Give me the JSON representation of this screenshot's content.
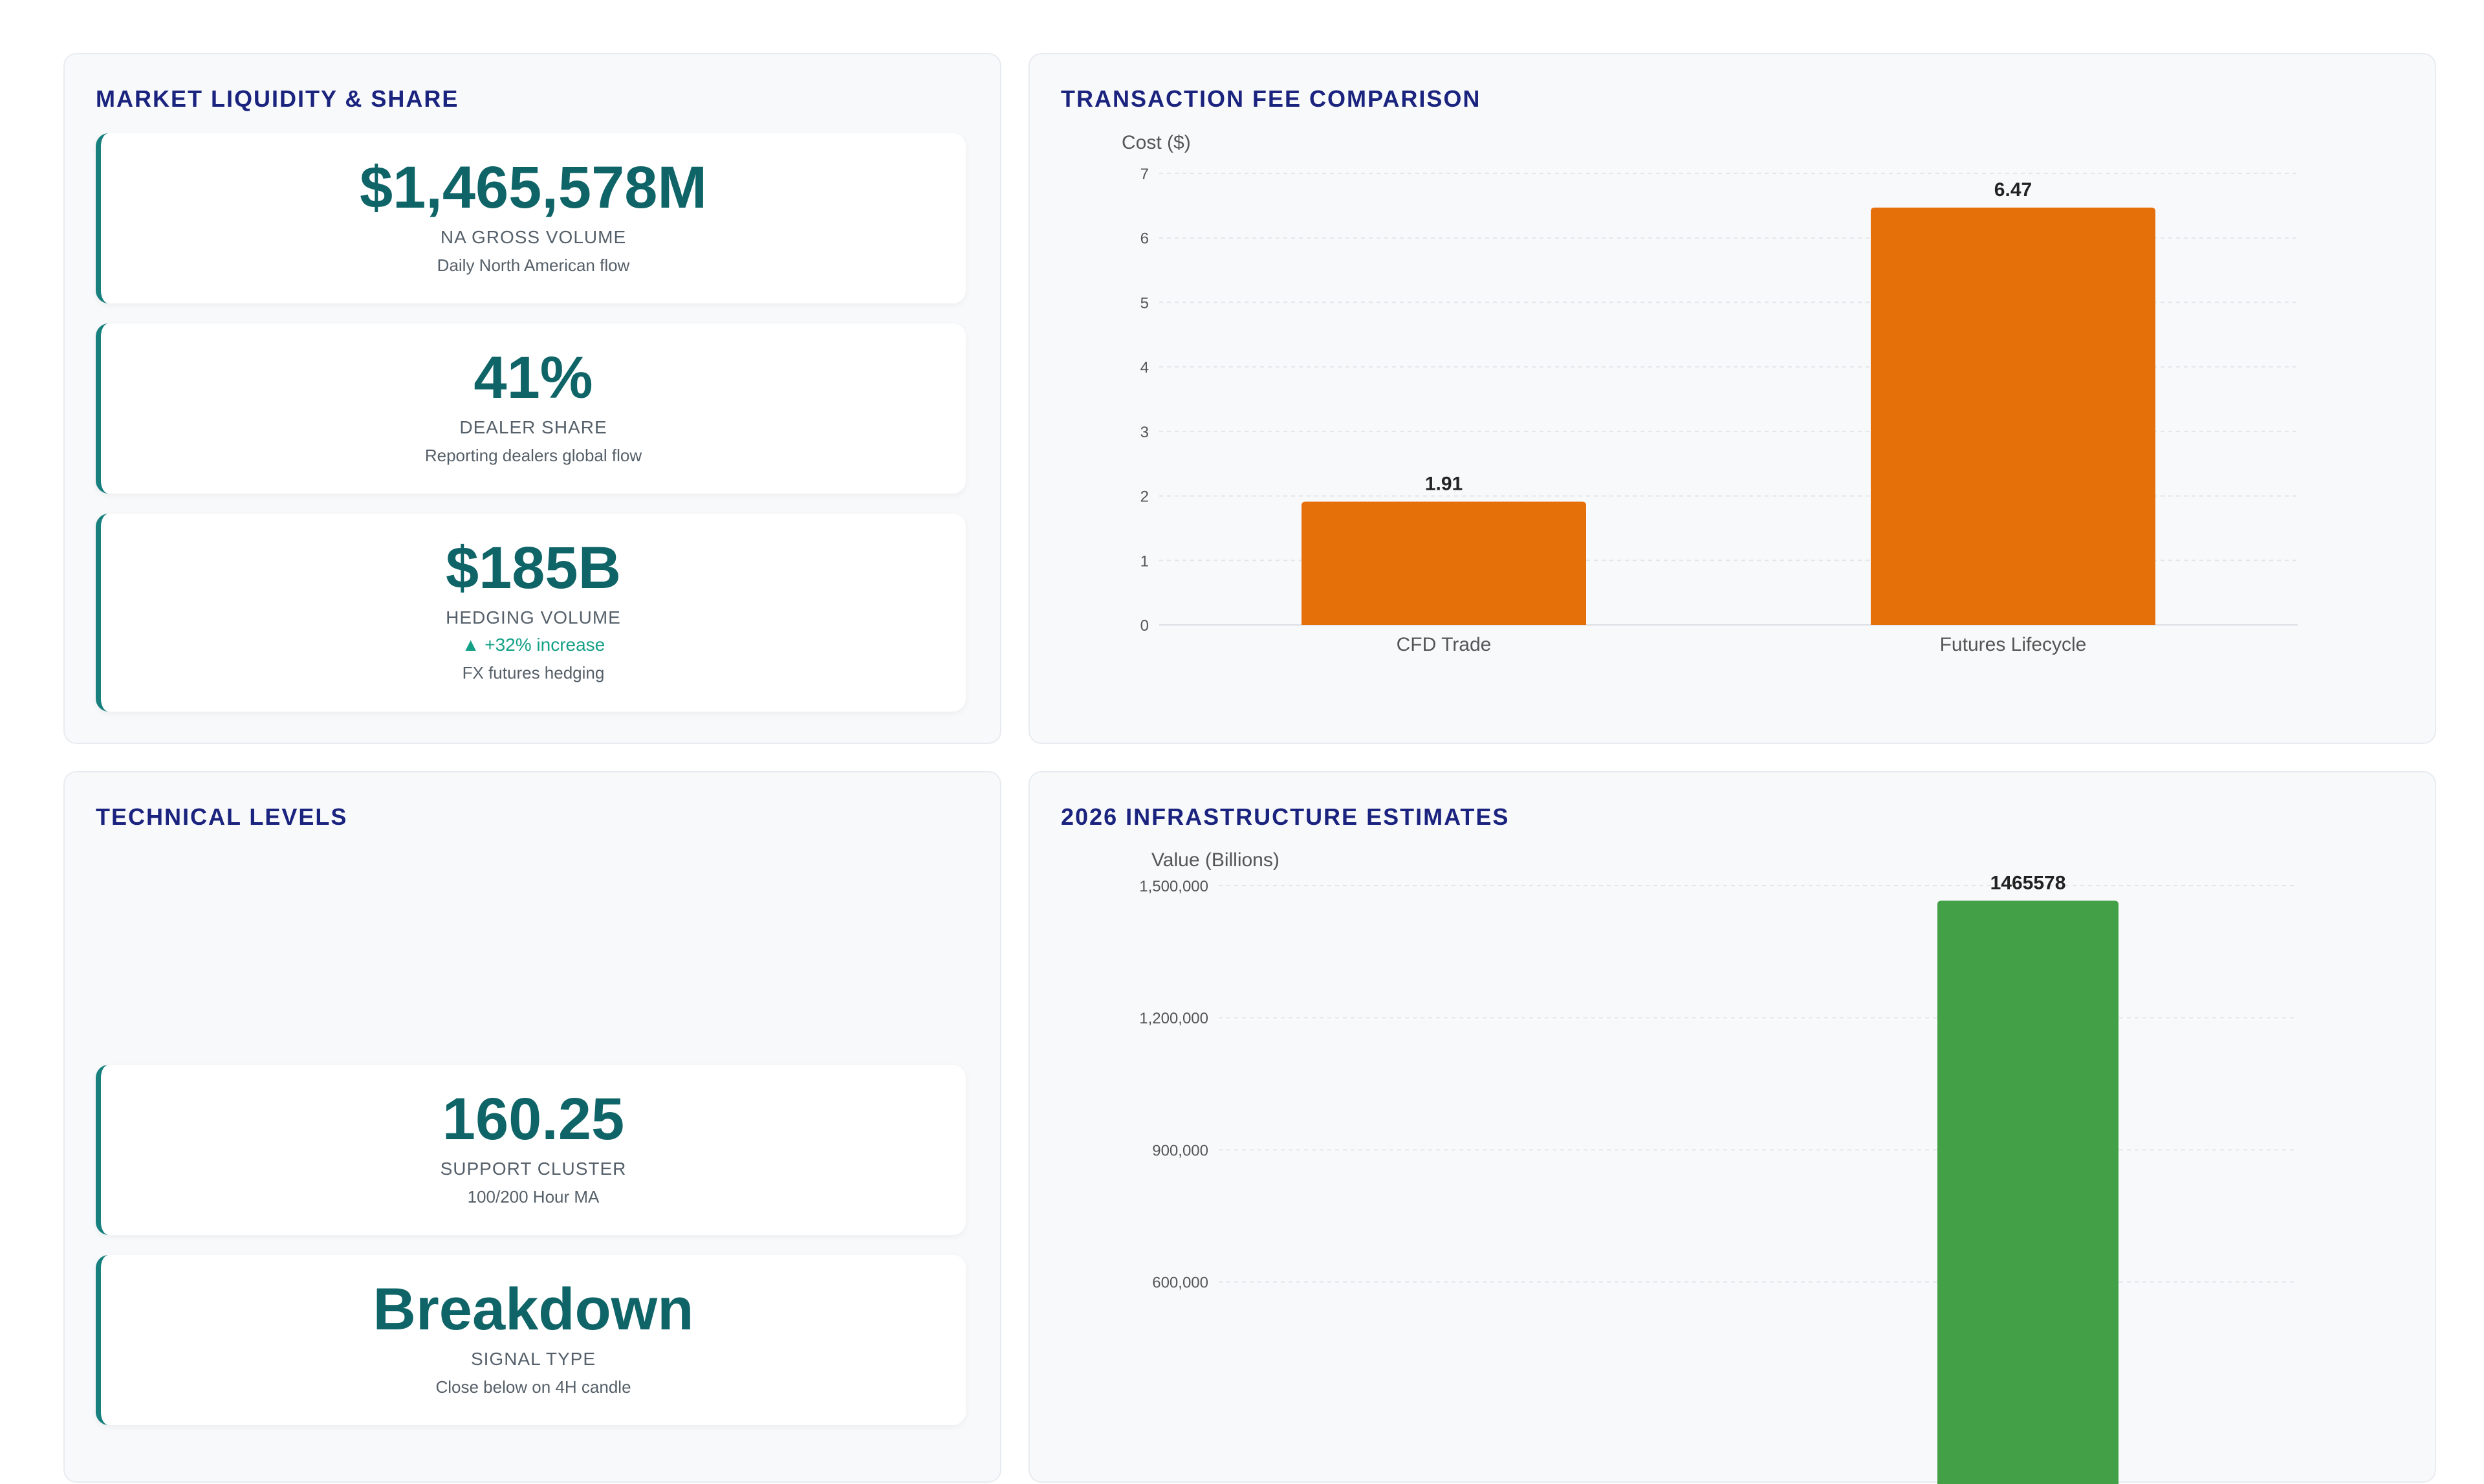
{
  "market": {
    "title": "MARKET LIQUIDITY & SHARE",
    "cards": [
      {
        "value": "$1,465,578M",
        "label": "NA GROSS VOLUME",
        "desc": "Daily North American flow"
      },
      {
        "value": "41%",
        "label": "DEALER SHARE",
        "desc": "Reporting dealers global flow"
      },
      {
        "value": "$185B",
        "label": "HEDGING VOLUME",
        "change": "▲ +32% increase",
        "desc": "FX futures hedging"
      }
    ]
  },
  "technical": {
    "title": "TECHNICAL LEVELS",
    "cards": [
      {
        "value": "160.25",
        "label": "SUPPORT CLUSTER",
        "desc": "100/200 Hour MA"
      },
      {
        "value": "Breakdown",
        "label": "SIGNAL TYPE",
        "desc": "Close below on 4H candle"
      }
    ]
  },
  "colors": {
    "accent": "#17807e",
    "fee_bar": "#e5700a",
    "infra_bar": "#43a047",
    "title": "#1a237e"
  },
  "chart_data": [
    {
      "type": "bar",
      "title": "TRANSACTION FEE COMPARISON",
      "ylabel": "Cost ($)",
      "categories": [
        "CFD Trade",
        "Futures Lifecycle"
      ],
      "values": [
        1.91,
        6.47
      ],
      "value_labels": [
        "1.91",
        "6.47"
      ],
      "ylim": [
        0,
        7
      ],
      "yticks": [
        0,
        1,
        2,
        3,
        4,
        5,
        6,
        7
      ],
      "ytick_labels": [
        "0",
        "1",
        "2",
        "3",
        "4",
        "5",
        "6",
        "7"
      ],
      "grid": true,
      "color": "#e5700a"
    },
    {
      "type": "bar",
      "title": "2026 INFRASTRUCTURE ESTIMATES",
      "ylabel": "Value (Billions)",
      "categories": [
        "",
        ""
      ],
      "values": [
        0,
        1465578
      ],
      "value_labels": [
        "",
        "1465578"
      ],
      "ylim": [
        0,
        1500000
      ],
      "yticks": [
        600000,
        900000,
        1200000,
        1500000
      ],
      "ytick_labels": [
        "600,000",
        "900,000",
        "1,200,000",
        "1,500,000"
      ],
      "grid": true,
      "color": "#43a047"
    }
  ]
}
